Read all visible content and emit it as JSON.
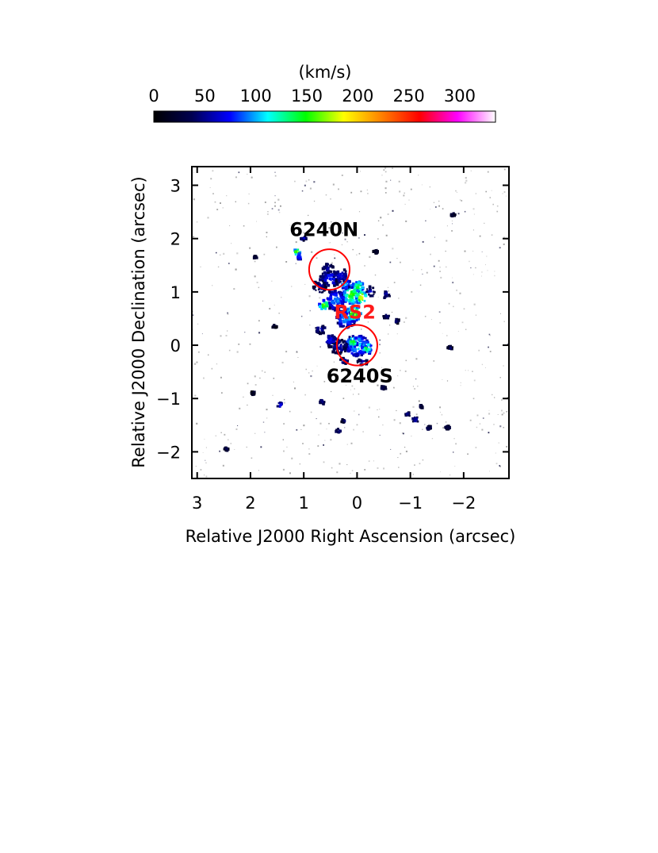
{
  "chart_data": {
    "type": "heatmap",
    "xlabel": "Relative J2000 Right Ascension (arcsec)",
    "ylabel": "Relative J2000 Declination (arcsec)",
    "x_ticks": [
      3,
      2,
      1,
      0,
      -1,
      -2
    ],
    "y_ticks": [
      3,
      2,
      1,
      0,
      -1,
      -2
    ],
    "x_tick_labels": [
      "3",
      "2",
      "1",
      "0",
      "−1",
      "−2"
    ],
    "y_tick_labels": [
      "3",
      "2",
      "1",
      "0",
      "−1",
      "−2"
    ],
    "xlim": [
      3.1,
      -2.85
    ],
    "ylim": [
      -2.5,
      3.35
    ],
    "colorbar": {
      "unit_label": "(km/s)",
      "range": [
        0,
        335
      ],
      "ticks": [
        0,
        50,
        100,
        150,
        200,
        250,
        300
      ],
      "tick_labels": [
        "0",
        "50",
        "100",
        "150",
        "200",
        "250",
        "300"
      ],
      "colors": [
        "#000000",
        "#000050",
        "#0000ff",
        "#00ffff",
        "#00ff00",
        "#ffff00",
        "#ff8000",
        "#ff0000",
        "#ff00ff",
        "#ffffff"
      ]
    },
    "markers": [
      {
        "name": "6240N",
        "label": "6240N",
        "ra": 0.52,
        "dec": 1.42,
        "radius": 0.38,
        "color": "#ff0000",
        "label_ra": 0.62,
        "label_dec": 2.05
      },
      {
        "name": "6240S",
        "label": "6240S",
        "ra": 0.0,
        "dec": 0.0,
        "radius": 0.38,
        "color": "#ff0000",
        "label_ra": -0.05,
        "label_dec": -0.7
      },
      {
        "name": "RS2",
        "label": "RS2",
        "ra": 0.04,
        "dec": 0.5,
        "color": "#ff0000"
      }
    ],
    "emission": [
      {
        "ra": 0.0,
        "dec": 0.0,
        "sx": 0.22,
        "sy": 0.2,
        "v": 110
      },
      {
        "ra": 0.08,
        "dec": 0.06,
        "sx": 0.1,
        "sy": 0.1,
        "v": 150
      },
      {
        "ra": -0.18,
        "dec": -0.05,
        "sx": 0.1,
        "sy": 0.12,
        "v": 140
      },
      {
        "ra": 0.35,
        "dec": -0.02,
        "sx": 0.18,
        "sy": 0.14,
        "v": 55
      },
      {
        "ra": 0.5,
        "dec": 0.1,
        "sx": 0.12,
        "sy": 0.1,
        "v": 70
      },
      {
        "ra": 0.2,
        "dec": 0.5,
        "sx": 0.18,
        "sy": 0.18,
        "v": 100
      },
      {
        "ra": 0.05,
        "dec": 0.6,
        "sx": 0.15,
        "sy": 0.14,
        "v": 165
      },
      {
        "ra": 0.4,
        "dec": 0.85,
        "sx": 0.2,
        "sy": 0.2,
        "v": 90
      },
      {
        "ra": 0.1,
        "dec": 0.95,
        "sx": 0.16,
        "sy": 0.2,
        "v": 150
      },
      {
        "ra": -0.08,
        "dec": 0.9,
        "sx": 0.1,
        "sy": 0.12,
        "v": 185
      },
      {
        "ra": -0.02,
        "dec": 1.1,
        "sx": 0.12,
        "sy": 0.1,
        "v": 145
      },
      {
        "ra": 0.62,
        "dec": 0.75,
        "sx": 0.09,
        "sy": 0.09,
        "v": 165
      },
      {
        "ra": 0.5,
        "dec": 1.25,
        "sx": 0.2,
        "sy": 0.15,
        "v": 75
      },
      {
        "ra": 0.3,
        "dec": 1.3,
        "sx": 0.14,
        "sy": 0.13,
        "v": 70
      },
      {
        "ra": 0.22,
        "dec": 1.15,
        "sx": 0.1,
        "sy": 0.1,
        "v": 110
      },
      {
        "ra": 0.55,
        "dec": 1.45,
        "sx": 0.1,
        "sy": 0.1,
        "v": 55
      },
      {
        "ra": 0.7,
        "dec": 1.1,
        "sx": 0.12,
        "sy": 0.12,
        "v": 55
      },
      {
        "ra": -0.25,
        "dec": 1.0,
        "sx": 0.08,
        "sy": 0.1,
        "v": 60
      },
      {
        "ra": 0.68,
        "dec": 0.3,
        "sx": 0.1,
        "sy": 0.08,
        "v": 55
      },
      {
        "ra": 1.12,
        "dec": 1.75,
        "sx": 0.05,
        "sy": 0.06,
        "v": 190
      },
      {
        "ra": 1.08,
        "dec": 1.65,
        "sx": 0.05,
        "sy": 0.05,
        "v": 90
      },
      {
        "ra": 1.0,
        "dec": 2.0,
        "sx": 0.05,
        "sy": 0.04,
        "v": 60
      },
      {
        "ra": -0.1,
        "dec": -0.32,
        "sx": 0.1,
        "sy": 0.06,
        "v": 60
      },
      {
        "ra": 0.25,
        "dec": -0.3,
        "sx": 0.08,
        "sy": 0.06,
        "v": 55
      },
      {
        "ra": -0.55,
        "dec": 0.95,
        "sx": 0.07,
        "sy": 0.07,
        "v": 55
      },
      {
        "ra": -0.55,
        "dec": 0.55,
        "sx": 0.06,
        "sy": 0.05,
        "v": 45
      },
      {
        "ra": -0.75,
        "dec": 0.45,
        "sx": 0.06,
        "sy": 0.04,
        "v": 40
      },
      {
        "ra": 1.45,
        "dec": -1.12,
        "sx": 0.05,
        "sy": 0.05,
        "v": 70
      },
      {
        "ra": 0.65,
        "dec": -1.07,
        "sx": 0.04,
        "sy": 0.04,
        "v": 55
      },
      {
        "ra": 0.35,
        "dec": -1.6,
        "sx": 0.06,
        "sy": 0.05,
        "v": 45
      },
      {
        "ra": 0.25,
        "dec": -1.42,
        "sx": 0.04,
        "sy": 0.04,
        "v": 40
      },
      {
        "ra": -1.1,
        "dec": -1.4,
        "sx": 0.07,
        "sy": 0.05,
        "v": 60
      },
      {
        "ra": -0.95,
        "dec": -1.3,
        "sx": 0.05,
        "sy": 0.04,
        "v": 40
      },
      {
        "ra": -1.35,
        "dec": -1.55,
        "sx": 0.05,
        "sy": 0.04,
        "v": 35
      },
      {
        "ra": -1.7,
        "dec": -1.55,
        "sx": 0.05,
        "sy": 0.04,
        "v": 30
      },
      {
        "ra": -0.5,
        "dec": -0.8,
        "sx": 0.05,
        "sy": 0.04,
        "v": 40
      },
      {
        "ra": -1.2,
        "dec": -1.15,
        "sx": 0.04,
        "sy": 0.03,
        "v": 35
      },
      {
        "ra": 2.45,
        "dec": -1.95,
        "sx": 0.04,
        "sy": 0.03,
        "v": 30
      },
      {
        "ra": 1.95,
        "dec": -0.9,
        "sx": 0.04,
        "sy": 0.03,
        "v": 25
      },
      {
        "ra": -1.75,
        "dec": -0.05,
        "sx": 0.05,
        "sy": 0.03,
        "v": 35
      },
      {
        "ra": 1.9,
        "dec": 1.65,
        "sx": 0.04,
        "sy": 0.03,
        "v": 30
      },
      {
        "ra": -1.8,
        "dec": 2.45,
        "sx": 0.04,
        "sy": 0.03,
        "v": 30
      },
      {
        "ra": 1.55,
        "dec": 0.35,
        "sx": 0.04,
        "sy": 0.03,
        "v": 25
      },
      {
        "ra": -0.35,
        "dec": 1.75,
        "sx": 0.04,
        "sy": 0.03,
        "v": 30
      }
    ]
  }
}
